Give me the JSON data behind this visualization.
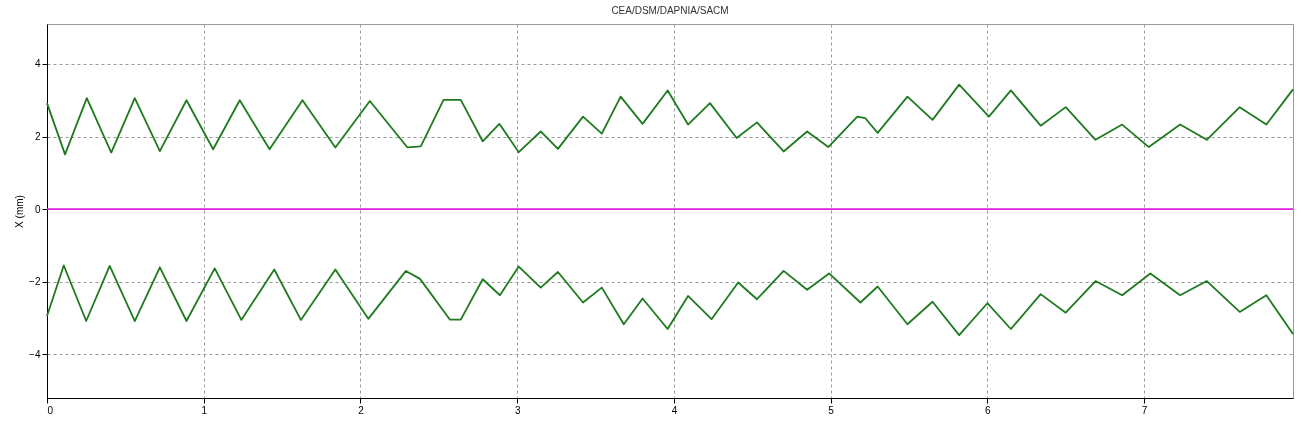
{
  "chart_data": {
    "type": "line",
    "title": "CEA/DSM/DAPNIA/SACM",
    "ylabel": "X (mm)",
    "xlim": [
      0,
      7.95
    ],
    "ylim": [
      -5.2,
      5.1
    ],
    "xticks": [
      0,
      1,
      2,
      3,
      4,
      5,
      6,
      7
    ],
    "yticks": [
      -4,
      -2,
      0,
      2,
      4
    ],
    "grid": true,
    "series": [
      {
        "color": "#1f7a1f",
        "x": [
          0,
          0.115,
          0.254,
          0.41,
          0.56,
          0.72,
          0.89,
          1.06,
          1.23,
          1.42,
          1.63,
          1.84,
          2.06,
          2.3,
          2.385,
          2.53,
          2.64,
          2.78,
          2.886,
          3.01,
          3.15,
          3.26,
          3.42,
          3.54,
          3.66,
          3.8,
          3.96,
          4.09,
          4.23,
          4.4,
          4.53,
          4.7,
          4.85,
          4.985,
          5.17,
          5.22,
          5.3,
          5.49,
          5.65,
          5.82,
          6.01,
          6.15,
          6.34,
          6.5,
          6.69,
          6.86,
          7.03,
          7.23,
          7.4,
          7.61,
          7.78,
          7.95
        ],
        "values": [
          2.92,
          1.51,
          3.06,
          1.56,
          3.06,
          1.6,
          3.0,
          1.65,
          3.0,
          1.65,
          3.0,
          1.7,
          2.98,
          1.7,
          1.73,
          3.01,
          3.01,
          1.87,
          2.35,
          1.57,
          2.14,
          1.66,
          2.55,
          2.08,
          3.1,
          2.35,
          3.27,
          2.33,
          2.92,
          1.96,
          2.39,
          1.59,
          2.14,
          1.71,
          2.55,
          2.51,
          2.1,
          3.1,
          2.46,
          3.43,
          2.55,
          3.27,
          2.3,
          2.81,
          1.91,
          2.33,
          1.71,
          2.33,
          1.91,
          2.81,
          2.33,
          3.3
        ]
      },
      {
        "color": "#1f7a1f",
        "x": [
          0,
          0.107,
          0.25,
          0.4,
          0.56,
          0.72,
          0.89,
          1.07,
          1.24,
          1.45,
          1.62,
          1.84,
          2.05,
          2.29,
          2.38,
          2.57,
          2.64,
          2.78,
          2.89,
          3.01,
          3.15,
          3.26,
          3.42,
          3.54,
          3.68,
          3.8,
          3.96,
          4.09,
          4.24,
          4.41,
          4.53,
          4.7,
          4.85,
          4.99,
          5.19,
          5.3,
          5.49,
          5.65,
          5.82,
          6.0,
          6.15,
          6.34,
          6.5,
          6.69,
          6.86,
          7.04,
          7.23,
          7.4,
          7.61,
          7.78,
          7.95
        ],
        "values": [
          -2.94,
          -1.55,
          -3.08,
          -1.56,
          -3.08,
          -1.6,
          -3.08,
          -1.63,
          -3.05,
          -1.66,
          -3.05,
          -1.66,
          -3.02,
          -1.7,
          -1.92,
          -3.04,
          -3.04,
          -1.93,
          -2.37,
          -1.58,
          -2.16,
          -1.73,
          -2.57,
          -2.16,
          -3.17,
          -2.46,
          -3.3,
          -2.39,
          -3.03,
          -2.02,
          -2.48,
          -1.7,
          -2.22,
          -1.77,
          -2.57,
          -2.13,
          -3.17,
          -2.55,
          -3.47,
          -2.59,
          -3.3,
          -2.34,
          -2.85,
          -1.98,
          -2.37,
          -1.77,
          -2.37,
          -1.98,
          -2.83,
          -2.37,
          -3.44
        ]
      },
      {
        "color": "#e020e0",
        "x": [
          0,
          7.95
        ],
        "values": [
          0,
          0
        ]
      }
    ]
  }
}
